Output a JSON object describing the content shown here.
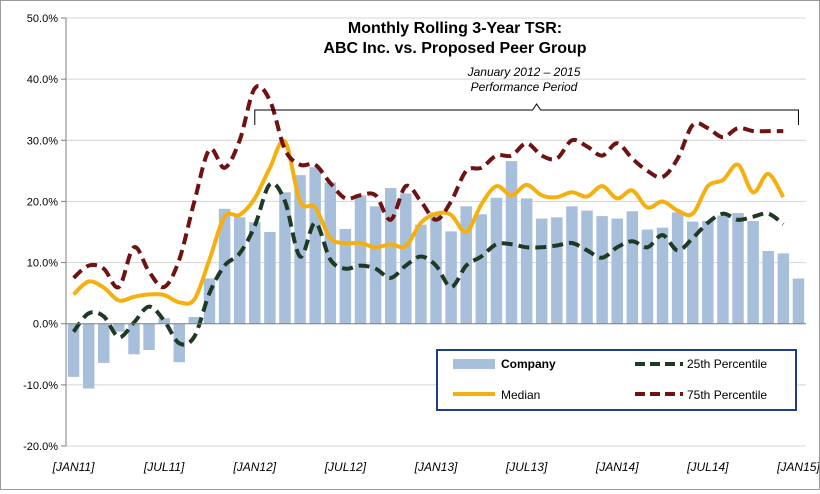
{
  "chart_data": {
    "type": "bar+line",
    "title_line1": "Monthly Rolling 3-Year TSR:",
    "title_line2": "ABC Inc. vs. Proposed Peer Group",
    "annotation_line1": "January 2012 – 2015",
    "annotation_line2": "Performance Period",
    "ylim": [
      -20,
      50
    ],
    "yticks": [
      -20,
      -10,
      0,
      10,
      20,
      30,
      40,
      50
    ],
    "ytick_labels": [
      "-20.0%",
      "-10.0%",
      "0.0%",
      "10.0%",
      "20.0%",
      "30.0%",
      "40.0%",
      "50.0%"
    ],
    "xtick_labels": [
      {
        "label": "[JAN11]",
        "index": 0
      },
      {
        "label": "[JUL11]",
        "index": 6
      },
      {
        "label": "[JAN12]",
        "index": 12
      },
      {
        "label": "[JUL12]",
        "index": 18
      },
      {
        "label": "[JAN13]",
        "index": 24
      },
      {
        "label": "[JUL13]",
        "index": 30
      },
      {
        "label": "[JAN14]",
        "index": 36
      },
      {
        "label": "[JUL14]",
        "index": 42
      },
      {
        "label": "[JAN15]",
        "index": 48
      }
    ],
    "bracket_range": [
      12,
      48
    ],
    "legend_position": "bottom-right",
    "series": [
      {
        "name": "Company",
        "kind": "bar",
        "color": "#a8bfdc",
        "values": [
          -8.7,
          -10.6,
          -6.4,
          -1.3,
          -5.0,
          -4.3,
          0.9,
          -6.3,
          1.1,
          7.4,
          18.8,
          17.4,
          16.6,
          15.0,
          21.5,
          24.3,
          25.6,
          23.1,
          15.5,
          21.0,
          19.2,
          22.2,
          21.3,
          16.2,
          18.2,
          15.1,
          19.2,
          17.9,
          20.6,
          26.6,
          20.5,
          17.2,
          17.4,
          19.2,
          18.5,
          17.6,
          17.2,
          18.4,
          15.4,
          15.7,
          18.2,
          16.7,
          16.8,
          17.7,
          18.1,
          16.8,
          11.9,
          11.5,
          7.4
        ]
      },
      {
        "name": "25th Percentile",
        "kind": "line",
        "color": "#1e3a24",
        "dash": true,
        "values": [
          -1.3,
          1.7,
          1.2,
          -2.2,
          0.2,
          2.8,
          0.5,
          -3.2,
          -2.1,
          5.0,
          9.5,
          11.5,
          16.0,
          22.8,
          20.0,
          11.0,
          16.5,
          10.5,
          9.0,
          9.5,
          9.0,
          7.5,
          9.5,
          11.0,
          9.5,
          6.0,
          9.5,
          11.0,
          13.0,
          13.0,
          12.5,
          12.5,
          12.8,
          13.2,
          12.0,
          10.8,
          12.5,
          13.5,
          12.5,
          14.5,
          12.0,
          14.0,
          16.5,
          18.0,
          17.0,
          17.5,
          18.0,
          16.3
        ]
      },
      {
        "name": "Median",
        "kind": "line",
        "color": "#f5b010",
        "dash": false,
        "values": [
          4.8,
          6.9,
          5.9,
          3.8,
          4.4,
          4.8,
          4.7,
          3.5,
          4.0,
          10.5,
          17.5,
          17.8,
          20.5,
          25.5,
          29.8,
          20.0,
          19.0,
          14.0,
          13.2,
          13.2,
          12.5,
          13.0,
          12.7,
          16.5,
          18.0,
          17.8,
          15.0,
          19.5,
          22.5,
          21.0,
          22.7,
          21.0,
          20.7,
          21.5,
          20.8,
          22.5,
          20.5,
          21.8,
          19.0,
          20.0,
          18.5,
          18.0,
          22.5,
          23.5,
          26.0,
          21.5,
          24.5,
          20.7
        ]
      },
      {
        "name": "75th Percentile",
        "kind": "line",
        "color": "#6e1212",
        "dash": true,
        "values": [
          7.5,
          9.5,
          9.0,
          6.0,
          12.5,
          8.5,
          6.0,
          10.5,
          20.0,
          28.5,
          25.5,
          30.0,
          38.5,
          36.5,
          28.5,
          26.0,
          26.0,
          23.0,
          20.5,
          21.0,
          21.0,
          17.0,
          22.5,
          20.0,
          17.0,
          20.0,
          25.0,
          25.5,
          27.5,
          27.5,
          29.5,
          27.5,
          27.0,
          30.0,
          29.0,
          27.5,
          29.5,
          27.0,
          25.0,
          24.0,
          27.0,
          32.5,
          32.0,
          30.5,
          32.0,
          31.5,
          31.5,
          31.5
        ]
      }
    ]
  }
}
